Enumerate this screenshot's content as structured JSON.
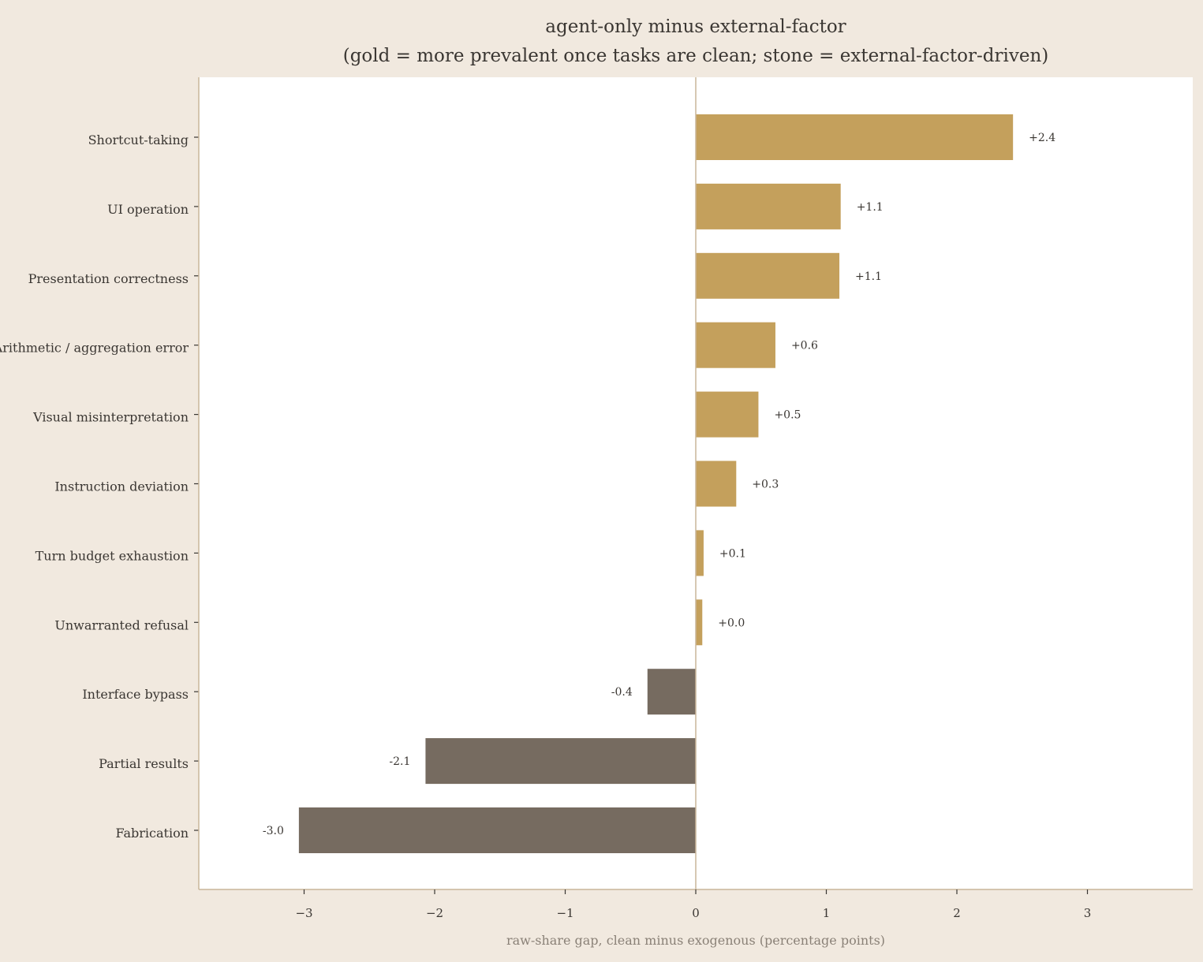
{
  "chart_data": {
    "type": "bar",
    "orientation": "horizontal",
    "title": "agent-only minus external-factor",
    "subtitle": "(gold = more prevalent once tasks are clean; stone = external-factor-driven)",
    "xlabel": "raw-share gap, clean minus exogenous (percentage points)",
    "ylabel": "",
    "xlim": [
      -3.8,
      3.8
    ],
    "xticks": [
      -3,
      -2,
      -1,
      0,
      1,
      2,
      3
    ],
    "xtick_labels": [
      "−3",
      "−2",
      "−1",
      "0",
      "1",
      "2",
      "3"
    ],
    "grid": false,
    "legend": "none",
    "categories": [
      "Shortcut-taking",
      "UI operation",
      "Presentation correctness",
      "Arithmetic / aggregation error",
      "Visual misinterpretation",
      "Instruction deviation",
      "Turn budget exhaustion",
      "Unwarranted refusal",
      "Interface bypass",
      "Partial results",
      "Fabrication"
    ],
    "values": [
      2.43,
      1.11,
      1.1,
      0.61,
      0.48,
      0.31,
      0.06,
      0.05,
      -0.37,
      -2.07,
      -3.04
    ],
    "data_labels": [
      "+2.4",
      "+1.1",
      "+1.1",
      "+0.6",
      "+0.5",
      "+0.3",
      "+0.1",
      "+0.0",
      "-0.4",
      "-2.1",
      "-3.0"
    ],
    "colors": {
      "positive": "#c4a05c",
      "negative": "#766b60",
      "plot_background": "#ffffff",
      "page_background": "#f1e9df",
      "axis": "#c9b59a"
    }
  }
}
